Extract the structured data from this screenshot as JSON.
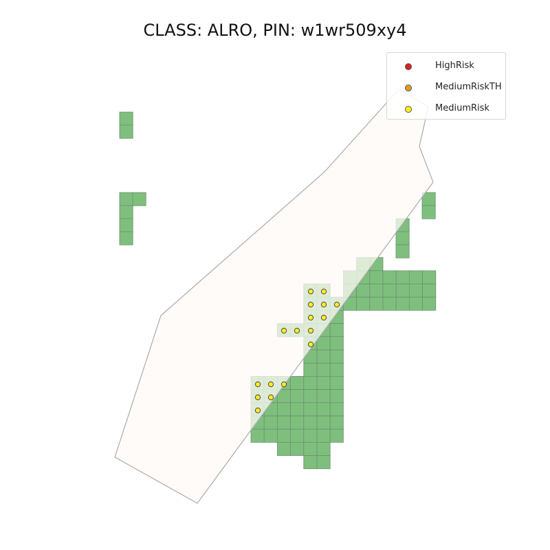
{
  "title": "CLASS: ALRO, PIN: w1wr509xy4",
  "colors": {
    "cell_fill": "#7ebf7e",
    "cell_overlap_fill": "#a8cf9d",
    "cell_stroke": "#6f8f6f",
    "parcel_fill": "#fdf9f6",
    "parcel_stroke": "#aaaaaa",
    "high_risk": "#d62020",
    "medium_risk_th": "#e39b1a",
    "medium_risk": "#ffee22"
  },
  "legend": {
    "items": [
      {
        "label": "HighRisk",
        "color": "#d62020"
      },
      {
        "label": "MediumRiskTH",
        "color": "#e39b1a"
      },
      {
        "label": "MediumRisk",
        "color": "#ffee22"
      }
    ]
  },
  "layers": {
    "parcel": {
      "name": "parcel-polygon"
    },
    "grid_cells": {
      "name": "green-grid-cells"
    },
    "risk_points": {
      "name": "risk-points",
      "category": "MediumRisk"
    }
  }
}
